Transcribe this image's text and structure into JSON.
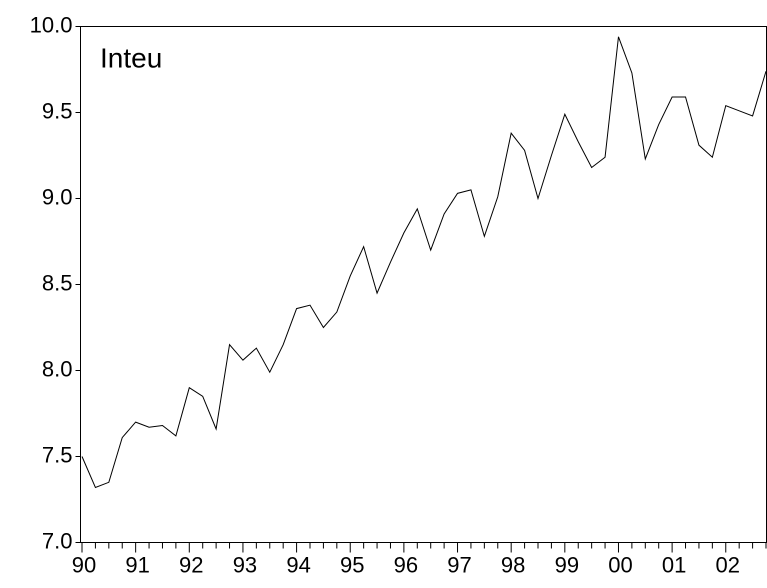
{
  "chart_data": {
    "type": "line",
    "categories": [
      "90",
      null,
      null,
      null,
      "91",
      null,
      null,
      null,
      "92",
      null,
      null,
      null,
      "93",
      null,
      null,
      null,
      "94",
      null,
      null,
      null,
      "95",
      null,
      null,
      null,
      "96",
      null,
      null,
      null,
      "97",
      null,
      null,
      null,
      "98",
      null,
      null,
      null,
      "99",
      null,
      null,
      null,
      "00",
      null,
      null,
      null,
      "01",
      null,
      null,
      null,
      "02",
      null,
      null,
      null
    ],
    "series": [
      {
        "name": "Inteu",
        "color": "#000000",
        "values": [
          7.5,
          7.32,
          7.35,
          7.61,
          7.7,
          7.67,
          7.68,
          7.62,
          7.9,
          7.85,
          7.66,
          8.15,
          8.06,
          8.13,
          7.99,
          8.15,
          8.36,
          8.38,
          8.25,
          8.34,
          8.55,
          8.72,
          8.45,
          8.63,
          8.8,
          8.94,
          8.7,
          8.91,
          9.03,
          9.05,
          8.78,
          9.01,
          9.38,
          9.28,
          9.0,
          9.25,
          9.49,
          9.33,
          9.18,
          9.24,
          9.94,
          9.73,
          9.23,
          9.43,
          9.59,
          9.59,
          9.31,
          9.24,
          9.54,
          9.51,
          9.48,
          9.74
        ]
      }
    ],
    "ylim": [
      7,
      10
    ],
    "yticks": [
      {
        "value": 7,
        "label": "7.0"
      },
      {
        "value": 7.5,
        "label": "7.5"
      },
      {
        "value": 8,
        "label": "8.0"
      },
      {
        "value": 8.5,
        "label": "8.5"
      },
      {
        "value": 9,
        "label": "9.0"
      },
      {
        "value": 9.5,
        "label": "9.5"
      },
      {
        "value": 10,
        "label": "10.0"
      }
    ],
    "grid": false
  }
}
